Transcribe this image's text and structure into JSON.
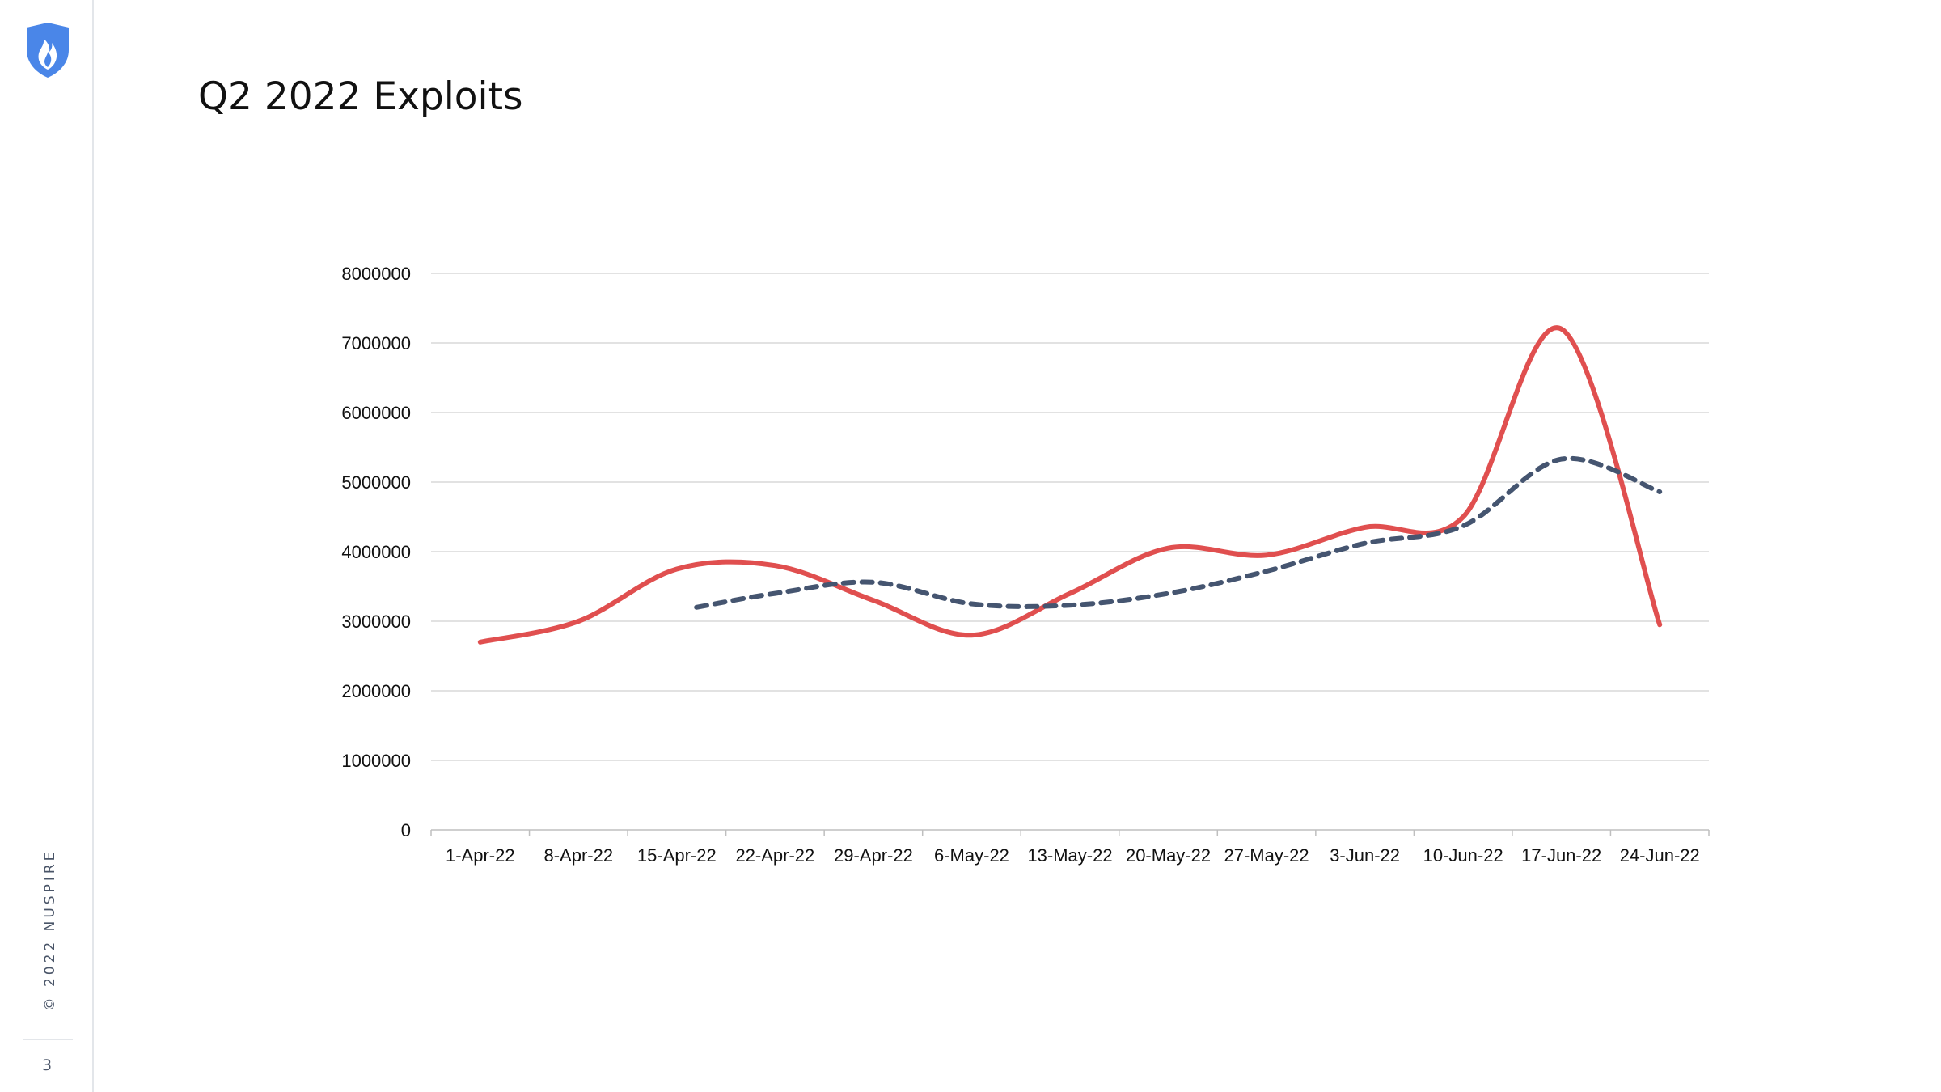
{
  "slide": {
    "title": "Q2 2022 Exploits",
    "copyright": "© 2022 NUSPIRE",
    "page_number": "3",
    "logo_icon": "shield-flame-icon",
    "accent_color": "#4a86e8"
  },
  "chart_data": {
    "type": "line",
    "title": "",
    "xlabel": "",
    "ylabel": "",
    "categories": [
      "1-Apr-22",
      "8-Apr-22",
      "15-Apr-22",
      "22-Apr-22",
      "29-Apr-22",
      "6-May-22",
      "13-May-22",
      "20-May-22",
      "27-May-22",
      "3-Jun-22",
      "10-Jun-22",
      "17-Jun-22",
      "24-Jun-22"
    ],
    "ylim": [
      0,
      8000000
    ],
    "yticks": [
      0,
      1000000,
      2000000,
      3000000,
      4000000,
      5000000,
      6000000,
      7000000,
      8000000
    ],
    "grid": true,
    "legend": "none",
    "series": [
      {
        "color": "#e04f4f",
        "style": "solid",
        "smooth": true,
        "points": [
          [
            0,
            2700000
          ],
          [
            1,
            3000000
          ],
          [
            2,
            3750000
          ],
          [
            3,
            3800000
          ],
          [
            4,
            3300000
          ],
          [
            5,
            2800000
          ],
          [
            6,
            3400000
          ],
          [
            7,
            4050000
          ],
          [
            8,
            3950000
          ],
          [
            9,
            4350000
          ],
          [
            10,
            4500000
          ],
          [
            11,
            7200000
          ],
          [
            12,
            2950000
          ]
        ]
      },
      {
        "color": "#455570",
        "style": "dashed",
        "smooth": true,
        "points": [
          [
            2.2,
            3200000
          ],
          [
            3,
            3400000
          ],
          [
            4,
            3560000
          ],
          [
            5,
            3250000
          ],
          [
            6,
            3230000
          ],
          [
            7,
            3400000
          ],
          [
            8,
            3720000
          ],
          [
            9,
            4120000
          ],
          [
            10,
            4370000
          ],
          [
            11,
            5330000
          ],
          [
            12,
            4860000
          ]
        ]
      }
    ]
  }
}
